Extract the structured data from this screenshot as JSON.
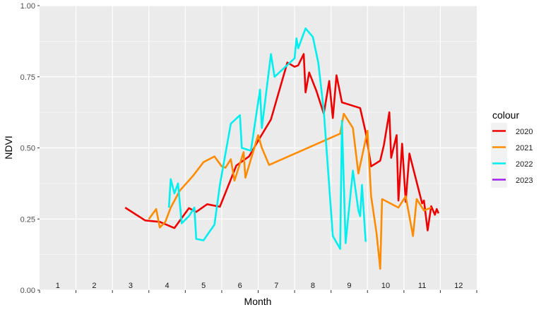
{
  "chart_data": {
    "type": "line",
    "title": "",
    "xlabel": "Month",
    "ylabel": "NDVI",
    "xlim": [
      0.5,
      12.5
    ],
    "ylim": [
      0,
      1
    ],
    "yticks": [
      0,
      0.25,
      0.5,
      0.75,
      1
    ],
    "ytick_labels": [
      "0.00",
      "0.25",
      "0.50",
      "0.75",
      "1.00"
    ],
    "x_category_labels": [
      "1",
      "2",
      "3",
      "4",
      "5",
      "6",
      "7",
      "8",
      "9",
      "10",
      "11",
      "12"
    ],
    "grid": true,
    "legend": {
      "title": "colour",
      "position": "right"
    },
    "series": [
      {
        "name": "2020",
        "color": "#ee0000",
        "points": [
          [
            2.85,
            0.29
          ],
          [
            3.4,
            0.245
          ],
          [
            3.8,
            0.24
          ],
          [
            4.2,
            0.218
          ],
          [
            4.6,
            0.288
          ],
          [
            4.8,
            0.275
          ],
          [
            5.1,
            0.302
          ],
          [
            5.45,
            0.293
          ],
          [
            5.9,
            0.438
          ],
          [
            6.25,
            0.47
          ],
          [
            6.5,
            0.525
          ],
          [
            6.85,
            0.6
          ],
          [
            7.3,
            0.8
          ],
          [
            7.5,
            0.785
          ],
          [
            7.6,
            0.79
          ],
          [
            7.75,
            0.83
          ],
          [
            7.8,
            0.695
          ],
          [
            7.9,
            0.765
          ],
          [
            8.1,
            0.7
          ],
          [
            8.3,
            0.62
          ],
          [
            8.45,
            0.735
          ],
          [
            8.55,
            0.605
          ],
          [
            8.65,
            0.755
          ],
          [
            8.8,
            0.66
          ],
          [
            9.3,
            0.64
          ],
          [
            9.45,
            0.555
          ],
          [
            9.6,
            0.435
          ],
          [
            9.85,
            0.455
          ],
          [
            9.95,
            0.51
          ],
          [
            10.1,
            0.625
          ],
          [
            10.15,
            0.465
          ],
          [
            10.3,
            0.545
          ],
          [
            10.35,
            0.315
          ],
          [
            10.45,
            0.515
          ],
          [
            10.55,
            0.31
          ],
          [
            10.65,
            0.48
          ],
          [
            10.85,
            0.38
          ],
          [
            11.0,
            0.305
          ],
          [
            11.05,
            0.315
          ],
          [
            11.15,
            0.21
          ],
          [
            11.25,
            0.295
          ],
          [
            11.35,
            0.265
          ],
          [
            11.4,
            0.285
          ],
          [
            11.45,
            0.27
          ]
        ]
      },
      {
        "name": "2021",
        "color": "#ff8c00",
        "points": [
          [
            3.5,
            0.25
          ],
          [
            3.7,
            0.285
          ],
          [
            3.8,
            0.22
          ],
          [
            3.95,
            0.24
          ],
          [
            4.1,
            0.29
          ],
          [
            4.35,
            0.35
          ],
          [
            4.7,
            0.4
          ],
          [
            5.0,
            0.45
          ],
          [
            5.3,
            0.47
          ],
          [
            5.5,
            0.435
          ],
          [
            5.6,
            0.43
          ],
          [
            5.75,
            0.46
          ],
          [
            5.85,
            0.385
          ],
          [
            6.1,
            0.485
          ],
          [
            6.15,
            0.395
          ],
          [
            6.5,
            0.545
          ],
          [
            6.6,
            0.5
          ],
          [
            6.8,
            0.44
          ],
          [
            8.75,
            0.55
          ],
          [
            8.85,
            0.62
          ],
          [
            9.1,
            0.57
          ],
          [
            9.25,
            0.41
          ],
          [
            9.5,
            0.56
          ],
          [
            9.6,
            0.33
          ],
          [
            9.75,
            0.2
          ],
          [
            9.85,
            0.075
          ],
          [
            9.9,
            0.32
          ],
          [
            10.35,
            0.29
          ],
          [
            10.55,
            0.33
          ],
          [
            10.75,
            0.19
          ],
          [
            10.85,
            0.32
          ],
          [
            11.05,
            0.28
          ],
          [
            11.25,
            0.29
          ]
        ]
      },
      {
        "name": "2022",
        "color": "#00eeee",
        "points": [
          [
            4.05,
            0.29
          ],
          [
            4.1,
            0.39
          ],
          [
            4.2,
            0.34
          ],
          [
            4.3,
            0.375
          ],
          [
            4.4,
            0.235
          ],
          [
            4.6,
            0.26
          ],
          [
            4.75,
            0.29
          ],
          [
            4.8,
            0.18
          ],
          [
            5.0,
            0.175
          ],
          [
            5.3,
            0.23
          ],
          [
            5.45,
            0.37
          ],
          [
            5.75,
            0.585
          ],
          [
            6.0,
            0.615
          ],
          [
            6.05,
            0.5
          ],
          [
            6.3,
            0.49
          ],
          [
            6.55,
            0.705
          ],
          [
            6.6,
            0.57
          ],
          [
            6.85,
            0.83
          ],
          [
            6.95,
            0.75
          ],
          [
            7.5,
            0.815
          ],
          [
            7.55,
            0.885
          ],
          [
            7.6,
            0.85
          ],
          [
            7.8,
            0.92
          ],
          [
            8.0,
            0.89
          ],
          [
            8.15,
            0.8
          ],
          [
            8.3,
            0.63
          ],
          [
            8.55,
            0.19
          ],
          [
            8.75,
            0.145
          ],
          [
            8.8,
            0.595
          ],
          [
            8.9,
            0.165
          ],
          [
            9.1,
            0.42
          ],
          [
            9.25,
            0.28
          ],
          [
            9.3,
            0.26
          ],
          [
            9.35,
            0.37
          ],
          [
            9.45,
            0.17
          ]
        ]
      },
      {
        "name": "2023",
        "color": "#a020f0",
        "points": []
      }
    ]
  }
}
